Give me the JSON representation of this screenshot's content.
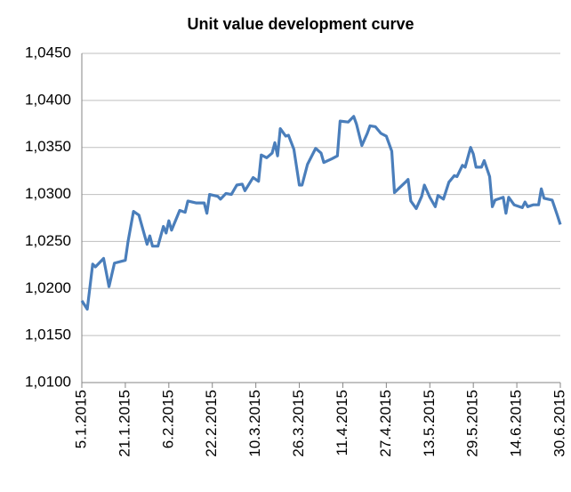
{
  "chart_data": {
    "type": "line",
    "title": "Unit value development curve",
    "x": [
      "5.1.2015",
      "7.1.2015",
      "9.1.2015",
      "10.1.2015",
      "13.1.2015",
      "15.1.2015",
      "17.1.2015",
      "21.1.2015",
      "22.1.2015",
      "24.1.2015",
      "26.1.2015",
      "29.1.2015",
      "30.1.2015",
      "31.1.2015",
      "2.2.2015",
      "4.2.2015",
      "5.2.2015",
      "6.2.2015",
      "7.2.2015",
      "10.2.2015",
      "12.2.2015",
      "13.2.2015",
      "16.2.2015",
      "19.2.2015",
      "20.2.2015",
      "21.2.2015",
      "24.2.2015",
      "25.2.2015",
      "27.2.2015",
      "1.3.2015",
      "3.3.2015",
      "5.3.2015",
      "6.3.2015",
      "9.3.2015",
      "11.3.2015",
      "12.3.2015",
      "14.3.2015",
      "16.3.2015",
      "17.3.2015",
      "18.3.2015",
      "19.3.2015",
      "21.3.2015",
      "22.3.2015",
      "24.3.2015",
      "26.3.2015",
      "27.3.2015",
      "29.3.2015",
      "1.4.2015",
      "3.4.2015",
      "4.4.2015",
      "7.4.2015",
      "9.4.2015",
      "10.4.2015",
      "13.4.2015",
      "15.4.2015",
      "16.4.2015",
      "18.4.2015",
      "20.4.2015",
      "21.4.2015",
      "23.4.2015",
      "25.4.2015",
      "27.4.2015",
      "29.4.2015",
      "30.4.2015",
      "4.5.2015",
      "5.5.2015",
      "6.5.2015",
      "8.5.2015",
      "10.5.2015",
      "11.5.2015",
      "13.5.2015",
      "15.5.2015",
      "16.5.2015",
      "18.5.2015",
      "20.5.2015",
      "22.5.2015",
      "23.5.2015",
      "25.5.2015",
      "26.5.2015",
      "28.5.2015",
      "29.5.2015",
      "30.5.2015",
      "1.6.2015",
      "2.6.2015",
      "4.6.2015",
      "5.6.2015",
      "6.6.2015",
      "9.6.2015",
      "10.6.2015",
      "11.6.2015",
      "13.6.2015",
      "16.6.2015",
      "17.6.2015",
      "18.6.2015",
      "20.6.2015",
      "22.6.2015",
      "23.6.2015",
      "24.6.2015",
      "27.6.2015",
      "29.6.2015",
      "30.6.2015"
    ],
    "series": [
      {
        "name": "Unit value",
        "color": "#4a7ebb",
        "values": [
          1.0187,
          1.0178,
          1.0226,
          1.0223,
          1.0232,
          1.0202,
          1.0227,
          1.023,
          1.025,
          1.0282,
          1.0278,
          1.0247,
          1.0256,
          1.0245,
          1.0245,
          1.0266,
          1.0259,
          1.0272,
          1.0262,
          1.0283,
          1.0281,
          1.0293,
          1.0291,
          1.0291,
          1.028,
          1.03,
          1.0298,
          1.0295,
          1.0301,
          1.03,
          1.031,
          1.0311,
          1.0304,
          1.0318,
          1.0314,
          1.0342,
          1.0339,
          1.0344,
          1.0355,
          1.0341,
          1.037,
          1.0362,
          1.0363,
          1.0348,
          1.031,
          1.031,
          1.0332,
          1.0349,
          1.0344,
          1.0334,
          1.0338,
          1.0341,
          1.0378,
          1.0377,
          1.0383,
          1.0375,
          1.0352,
          1.0365,
          1.0373,
          1.0372,
          1.0365,
          1.0362,
          1.0346,
          1.0302,
          1.0313,
          1.0316,
          1.0293,
          1.0285,
          1.0298,
          1.031,
          1.0297,
          1.0287,
          1.0299,
          1.0295,
          1.0313,
          1.032,
          1.0319,
          1.0331,
          1.0329,
          1.035,
          1.0343,
          1.0329,
          1.0329,
          1.0336,
          1.0319,
          1.0287,
          1.0294,
          1.0297,
          1.028,
          1.0297,
          1.0289,
          1.0286,
          1.0292,
          1.0287,
          1.0289,
          1.0289,
          1.0306,
          1.0296,
          1.0294,
          1.0277,
          1.0268
        ]
      }
    ],
    "xticks": [
      "5.1.2015",
      "21.1.2015",
      "6.2.2015",
      "22.2.2015",
      "10.3.2015",
      "26.3.2015",
      "11.4.2015",
      "27.4.2015",
      "13.5.2015",
      "29.5.2015",
      "14.6.2015",
      "30.6.2015"
    ],
    "ylim": [
      1.01,
      1.045
    ],
    "yticks": [
      {
        "value": 1.01,
        "label": "1,0100"
      },
      {
        "value": 1.015,
        "label": "1,0150"
      },
      {
        "value": 1.02,
        "label": "1,0200"
      },
      {
        "value": 1.025,
        "label": "1,0250"
      },
      {
        "value": 1.03,
        "label": "1,0300"
      },
      {
        "value": 1.035,
        "label": "1,0350"
      },
      {
        "value": 1.04,
        "label": "1,0400"
      },
      {
        "value": 1.045,
        "label": "1,0450"
      }
    ],
    "grid": true
  }
}
